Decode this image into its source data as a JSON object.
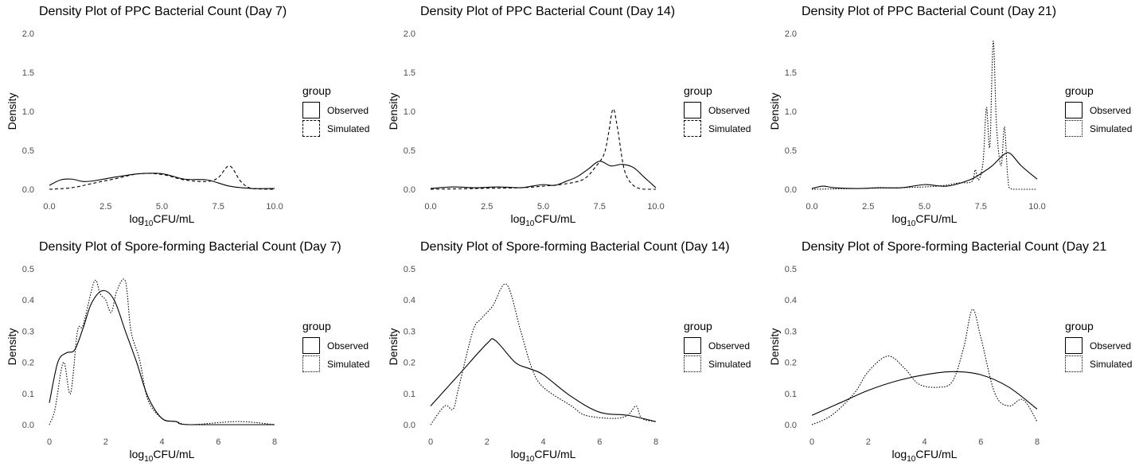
{
  "chart_data": [
    {
      "type": "line",
      "title": "Density Plot of PPC Bacterial Count (Day 7)",
      "xlabel": "CFU/mL",
      "xlabel_prefix": "log",
      "xlabel_sub": "10",
      "ylabel": "Density",
      "xlim": [
        0,
        10
      ],
      "ylim": [
        0,
        2.0
      ],
      "x_ticks": [
        "0.0",
        "2.5",
        "5.0",
        "7.5",
        "10.0"
      ],
      "y_ticks": [
        "0.0",
        "0.5",
        "1.0",
        "1.5",
        "2.0"
      ],
      "grid": false,
      "legend": {
        "title": "group",
        "position": "right"
      },
      "series": [
        {
          "name": "Observed",
          "line": "solid",
          "points": [
            [
              0,
              0.05
            ],
            [
              0.5,
              0.12
            ],
            [
              1,
              0.13
            ],
            [
              1.5,
              0.1
            ],
            [
              2,
              0.11
            ],
            [
              3,
              0.16
            ],
            [
              4,
              0.2
            ],
            [
              5,
              0.2
            ],
            [
              6,
              0.13
            ],
            [
              7,
              0.12
            ],
            [
              8,
              0.04
            ],
            [
              9,
              0.01
            ],
            [
              10,
              0.01
            ]
          ]
        },
        {
          "name": "Simulated",
          "line": "dashed",
          "points": [
            [
              0,
              0.0
            ],
            [
              1,
              0.02
            ],
            [
              2,
              0.08
            ],
            [
              3,
              0.14
            ],
            [
              4,
              0.2
            ],
            [
              5,
              0.19
            ],
            [
              6,
              0.12
            ],
            [
              7,
              0.1
            ],
            [
              7.5,
              0.15
            ],
            [
              8,
              0.3
            ],
            [
              8.5,
              0.1
            ],
            [
              9,
              0.01
            ],
            [
              10,
              0.0
            ]
          ]
        }
      ]
    },
    {
      "type": "line",
      "title": "Density Plot of PPC Bacterial Count (Day 14)",
      "xlabel": "CFU/mL",
      "xlabel_prefix": "log",
      "xlabel_sub": "10",
      "ylabel": "Density",
      "xlim": [
        0,
        10
      ],
      "ylim": [
        0,
        2.0
      ],
      "x_ticks": [
        "0.0",
        "2.5",
        "5.0",
        "7.5",
        "10.0"
      ],
      "y_ticks": [
        "0.0",
        "0.5",
        "1.0",
        "1.5",
        "2.0"
      ],
      "grid": false,
      "legend": {
        "title": "group",
        "position": "right"
      },
      "series": [
        {
          "name": "Observed",
          "line": "solid",
          "points": [
            [
              0,
              0.01
            ],
            [
              1,
              0.03
            ],
            [
              2,
              0.02
            ],
            [
              3,
              0.03
            ],
            [
              4,
              0.02
            ],
            [
              4.5,
              0.04
            ],
            [
              5,
              0.06
            ],
            [
              5.5,
              0.05
            ],
            [
              6,
              0.1
            ],
            [
              6.5,
              0.16
            ],
            [
              7,
              0.26
            ],
            [
              7.5,
              0.36
            ],
            [
              8,
              0.3
            ],
            [
              8.5,
              0.32
            ],
            [
              9,
              0.28
            ],
            [
              9.5,
              0.15
            ],
            [
              10,
              0.02
            ]
          ]
        },
        {
          "name": "Simulated",
          "line": "dashed",
          "points": [
            [
              0,
              0.0
            ],
            [
              2,
              0.01
            ],
            [
              4,
              0.02
            ],
            [
              5,
              0.04
            ],
            [
              6,
              0.07
            ],
            [
              6.8,
              0.13
            ],
            [
              7.3,
              0.28
            ],
            [
              7.7,
              0.45
            ],
            [
              7.9,
              0.72
            ],
            [
              8.1,
              1.03
            ],
            [
              8.3,
              0.78
            ],
            [
              8.6,
              0.25
            ],
            [
              9,
              0.05
            ],
            [
              9.5,
              0.0
            ],
            [
              10,
              0.0
            ]
          ]
        }
      ]
    },
    {
      "type": "line",
      "title": "Density Plot of PPC Bacterial Count (Day 21)",
      "xlabel": "CFU/mL",
      "xlabel_prefix": "log",
      "xlabel_sub": "10",
      "ylabel": "Density",
      "xlim": [
        0,
        10
      ],
      "ylim": [
        0,
        2.0
      ],
      "x_ticks": [
        "0.0",
        "2.5",
        "5.0",
        "7.5",
        "10.0"
      ],
      "y_ticks": [
        "0.0",
        "0.5",
        "1.0",
        "1.5",
        "2.0"
      ],
      "grid": false,
      "legend": {
        "title": "group",
        "position": "right"
      },
      "series": [
        {
          "name": "Observed",
          "line": "solid",
          "points": [
            [
              0,
              0.01
            ],
            [
              0.5,
              0.04
            ],
            [
              1,
              0.02
            ],
            [
              2,
              0.01
            ],
            [
              3,
              0.02
            ],
            [
              4,
              0.02
            ],
            [
              5,
              0.06
            ],
            [
              6,
              0.04
            ],
            [
              7,
              0.12
            ],
            [
              7.5,
              0.2
            ],
            [
              8,
              0.3
            ],
            [
              8.5,
              0.44
            ],
            [
              8.8,
              0.46
            ],
            [
              9.3,
              0.3
            ],
            [
              10,
              0.13
            ]
          ]
        },
        {
          "name": "Simulated",
          "line": "dotted",
          "points": [
            [
              0,
              0.0
            ],
            [
              5,
              0.03
            ],
            [
              6.5,
              0.08
            ],
            [
              7.1,
              0.1
            ],
            [
              7.25,
              0.25
            ],
            [
              7.4,
              0.12
            ],
            [
              7.6,
              0.35
            ],
            [
              7.75,
              1.05
            ],
            [
              7.9,
              0.55
            ],
            [
              8.05,
              1.9
            ],
            [
              8.2,
              0.8
            ],
            [
              8.4,
              0.3
            ],
            [
              8.55,
              0.8
            ],
            [
              8.7,
              0.15
            ],
            [
              8.9,
              0.0
            ],
            [
              10,
              0.0
            ]
          ]
        }
      ]
    },
    {
      "type": "line",
      "title": "Density Plot of Spore-forming Bacterial Count (Day 7)",
      "xlabel": "CFU/mL",
      "xlabel_prefix": "log",
      "xlabel_sub": "10",
      "ylabel": "Density",
      "xlim": [
        0,
        8
      ],
      "ylim": [
        0,
        0.5
      ],
      "x_ticks": [
        "0",
        "2",
        "4",
        "6",
        "8"
      ],
      "y_ticks": [
        "0.0",
        "0.1",
        "0.2",
        "0.3",
        "0.4",
        "0.5"
      ],
      "grid": false,
      "legend": {
        "title": "group",
        "position": "right"
      },
      "series": [
        {
          "name": "Observed",
          "line": "solid",
          "points": [
            [
              0,
              0.07
            ],
            [
              0.3,
              0.2
            ],
            [
              0.6,
              0.23
            ],
            [
              0.9,
              0.24
            ],
            [
              1.2,
              0.31
            ],
            [
              1.5,
              0.39
            ],
            [
              1.9,
              0.43
            ],
            [
              2.3,
              0.4
            ],
            [
              2.7,
              0.3
            ],
            [
              3.1,
              0.2
            ],
            [
              3.5,
              0.09
            ],
            [
              4,
              0.02
            ],
            [
              4.5,
              0.01
            ],
            [
              5,
              0.0
            ],
            [
              8,
              0.0
            ]
          ]
        },
        {
          "name": "Simulated",
          "line": "dotted",
          "points": [
            [
              0,
              0.0
            ],
            [
              0.2,
              0.05
            ],
            [
              0.5,
              0.2
            ],
            [
              0.75,
              0.1
            ],
            [
              1,
              0.3
            ],
            [
              1.2,
              0.32
            ],
            [
              1.6,
              0.46
            ],
            [
              1.8,
              0.42
            ],
            [
              2,
              0.4
            ],
            [
              2.2,
              0.36
            ],
            [
              2.4,
              0.43
            ],
            [
              2.7,
              0.46
            ],
            [
              2.9,
              0.3
            ],
            [
              3.2,
              0.21
            ],
            [
              3.5,
              0.08
            ],
            [
              4,
              0.02
            ],
            [
              4.5,
              0.01
            ],
            [
              5,
              0.0
            ],
            [
              6.7,
              0.01
            ],
            [
              8,
              0.0
            ]
          ]
        }
      ]
    },
    {
      "type": "line",
      "title": "Density Plot of Spore-forming Bacterial Count (Day 14)",
      "xlabel": "CFU/mL",
      "xlabel_prefix": "log",
      "xlabel_sub": "10",
      "ylabel": "Density",
      "xlim": [
        0,
        8
      ],
      "ylim": [
        0,
        0.5
      ],
      "x_ticks": [
        "0",
        "2",
        "4",
        "6",
        "8"
      ],
      "y_ticks": [
        "0.0",
        "0.1",
        "0.2",
        "0.3",
        "0.4",
        "0.5"
      ],
      "grid": false,
      "legend": {
        "title": "group",
        "position": "right"
      },
      "series": [
        {
          "name": "Observed",
          "line": "solid",
          "points": [
            [
              0,
              0.06
            ],
            [
              1,
              0.16
            ],
            [
              2,
              0.26
            ],
            [
              2.3,
              0.27
            ],
            [
              3,
              0.2
            ],
            [
              3.5,
              0.18
            ],
            [
              4,
              0.16
            ],
            [
              5,
              0.09
            ],
            [
              6,
              0.04
            ],
            [
              7,
              0.03
            ],
            [
              8,
              0.01
            ]
          ]
        },
        {
          "name": "Simulated",
          "line": "dotted",
          "points": [
            [
              0,
              0.0
            ],
            [
              0.5,
              0.06
            ],
            [
              0.8,
              0.05
            ],
            [
              1,
              0.12
            ],
            [
              1.5,
              0.3
            ],
            [
              1.8,
              0.34
            ],
            [
              2.2,
              0.38
            ],
            [
              2.7,
              0.45
            ],
            [
              3.2,
              0.3
            ],
            [
              3.6,
              0.18
            ],
            [
              4,
              0.12
            ],
            [
              5,
              0.06
            ],
            [
              5.5,
              0.03
            ],
            [
              6.5,
              0.02
            ],
            [
              7,
              0.03
            ],
            [
              7.3,
              0.06
            ],
            [
              7.5,
              0.02
            ],
            [
              8,
              0.01
            ]
          ]
        }
      ]
    },
    {
      "type": "line",
      "title": "Density Plot of Spore-forming Bacterial Count (Day 21",
      "xlabel": "CFU/mL",
      "xlabel_prefix": "log",
      "xlabel_sub": "10",
      "ylabel": "Density",
      "xlim": [
        0,
        8
      ],
      "ylim": [
        0,
        0.5
      ],
      "x_ticks": [
        "0",
        "2",
        "4",
        "6",
        "8"
      ],
      "y_ticks": [
        "0.0",
        "0.1",
        "0.2",
        "0.3",
        "0.4",
        "0.5"
      ],
      "grid": false,
      "legend": {
        "title": "group",
        "position": "right"
      },
      "series": [
        {
          "name": "Observed",
          "line": "solid",
          "points": [
            [
              0,
              0.03
            ],
            [
              1,
              0.07
            ],
            [
              2,
              0.11
            ],
            [
              3,
              0.14
            ],
            [
              4,
              0.16
            ],
            [
              5,
              0.17
            ],
            [
              6,
              0.16
            ],
            [
              7,
              0.12
            ],
            [
              8,
              0.05
            ]
          ]
        },
        {
          "name": "Simulated",
          "line": "dotted",
          "points": [
            [
              0,
              0.0
            ],
            [
              0.7,
              0.03
            ],
            [
              1.5,
              0.1
            ],
            [
              2,
              0.17
            ],
            [
              2.7,
              0.22
            ],
            [
              3.3,
              0.18
            ],
            [
              3.8,
              0.13
            ],
            [
              4.5,
              0.12
            ],
            [
              5,
              0.14
            ],
            [
              5.4,
              0.25
            ],
            [
              5.7,
              0.37
            ],
            [
              6,
              0.28
            ],
            [
              6.5,
              0.1
            ],
            [
              7,
              0.06
            ],
            [
              7.5,
              0.08
            ],
            [
              8,
              0.01
            ]
          ]
        }
      ]
    }
  ]
}
